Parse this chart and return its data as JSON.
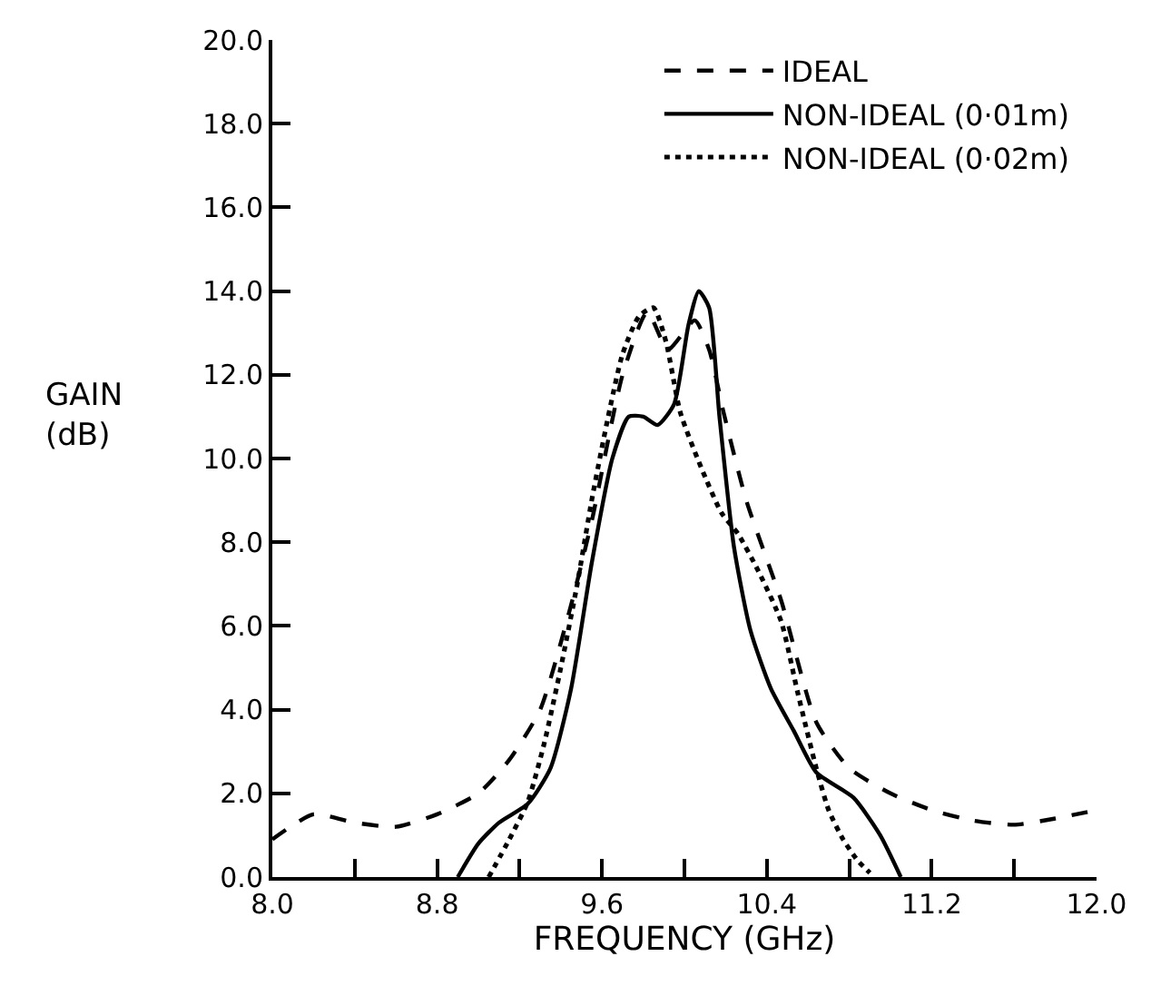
{
  "chart_data": {
    "type": "line",
    "xlabel": "FREQUENCY (GHz)",
    "ylabel": "GAIN (dB)",
    "xlim": [
      8.0,
      12.0
    ],
    "ylim": [
      0.0,
      20.0
    ],
    "xticks": [
      {
        "value": 8.0,
        "label": "8.0"
      },
      {
        "value": 8.4,
        "label": null
      },
      {
        "value": 8.8,
        "label": "8.8"
      },
      {
        "value": 9.2,
        "label": null
      },
      {
        "value": 9.6,
        "label": "9.6"
      },
      {
        "value": 10.0,
        "label": null
      },
      {
        "value": 10.4,
        "label": "10.4"
      },
      {
        "value": 10.8,
        "label": null
      },
      {
        "value": 11.2,
        "label": "11.2"
      },
      {
        "value": 11.6,
        "label": null
      },
      {
        "value": 12.0,
        "label": "12.0"
      }
    ],
    "yticks": [
      {
        "value": 0,
        "label": "0.0"
      },
      {
        "value": 2,
        "label": "2.0"
      },
      {
        "value": 4,
        "label": "4.0"
      },
      {
        "value": 6,
        "label": "6.0"
      },
      {
        "value": 8,
        "label": "8.0"
      },
      {
        "value": 10,
        "label": "10.0"
      },
      {
        "value": 12,
        "label": "12.0"
      },
      {
        "value": 14,
        "label": "14.0"
      },
      {
        "value": 16,
        "label": "16.0"
      },
      {
        "value": 18,
        "label": "18.0"
      },
      {
        "value": 20,
        "label": "20.0"
      }
    ],
    "legend": "top right",
    "marker": "none",
    "series": [
      {
        "name": "IDEAL",
        "color": "#000000",
        "line_style": "dashed",
        "x": [
          8.0,
          8.2,
          8.4,
          8.6,
          8.8,
          9.0,
          9.15,
          9.3,
          9.45,
          9.55,
          9.7,
          9.82,
          9.92,
          10.05,
          10.12,
          10.19,
          10.3,
          10.47,
          10.64,
          10.8,
          11.0,
          11.2,
          11.4,
          11.6,
          11.8,
          12.0
        ],
        "values": [
          0.9,
          1.5,
          1.3,
          1.2,
          1.5,
          2.0,
          2.8,
          4.0,
          6.5,
          8.5,
          12.0,
          13.5,
          12.6,
          13.3,
          12.6,
          11.1,
          9.0,
          6.6,
          3.7,
          2.6,
          2.0,
          1.6,
          1.35,
          1.25,
          1.4,
          1.6
        ]
      },
      {
        "name": "NON-IDEAL (0·01m)",
        "color": "#000000",
        "line_style": "solid",
        "x": [
          8.9,
          9.0,
          9.1,
          9.24,
          9.35,
          9.45,
          9.55,
          9.65,
          9.73,
          9.8,
          9.87,
          9.95,
          10.02,
          10.07,
          10.12,
          10.17,
          10.24,
          10.32,
          10.42,
          10.53,
          10.64,
          10.82,
          10.95,
          11.05
        ],
        "values": [
          0.0,
          0.8,
          1.3,
          1.75,
          2.6,
          4.5,
          7.5,
          10.0,
          11.0,
          11.0,
          10.8,
          11.3,
          13.2,
          14.0,
          13.6,
          11.0,
          7.9,
          5.9,
          4.5,
          3.5,
          2.5,
          1.9,
          1.0,
          0.0
        ]
      },
      {
        "name": "NON-IDEAL (0·02m)",
        "color": "#000000",
        "line_style": "dotted",
        "x": [
          9.05,
          9.15,
          9.24,
          9.32,
          9.4,
          9.48,
          9.55,
          9.63,
          9.7,
          9.78,
          9.85,
          9.91,
          9.98,
          10.08,
          10.18,
          10.26,
          10.36,
          10.47,
          10.55,
          10.64,
          10.7,
          10.77,
          10.84,
          10.9
        ],
        "values": [
          0.0,
          0.9,
          1.8,
          3.2,
          5.0,
          7.0,
          9.0,
          11.0,
          12.5,
          13.4,
          13.6,
          12.8,
          11.1,
          9.8,
          8.7,
          8.2,
          7.3,
          6.1,
          4.4,
          2.6,
          1.6,
          0.9,
          0.4,
          0.1
        ]
      }
    ]
  }
}
